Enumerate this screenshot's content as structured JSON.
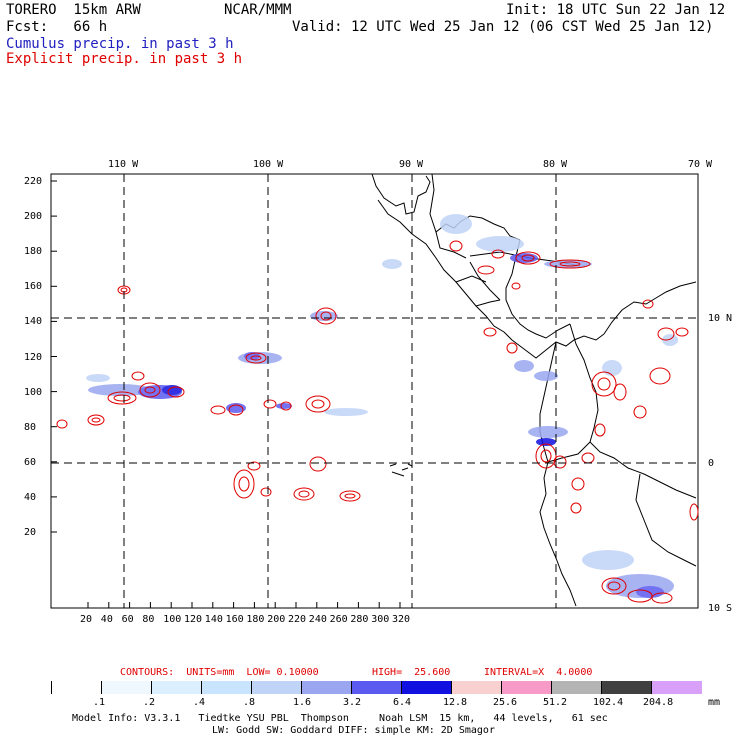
{
  "header": {
    "model": "TORERO  15km ARW",
    "org": "NCAR/MMM",
    "init": "Init: 18 UTC Sun 22 Jan 12",
    "fcst": "Fcst:   66 h",
    "valid": "Valid: 12 UTC Wed 25 Jan 12 (06 CST Wed 25 Jan 12)",
    "cumulus_label": "Cumulus precip. in past 3 h",
    "explicit_label": "Explicit precip. in past 3 h",
    "cumulus_color": "#2020c0",
    "explicit_color": "#e00000"
  },
  "map": {
    "lon_labels": [
      "110 W",
      "100 W",
      "90 W",
      "80 W",
      "70 W"
    ],
    "lat_labels": [
      "10 N",
      "0",
      "10 S"
    ],
    "y_ticks": [
      "220",
      "200",
      "180",
      "160",
      "140",
      "120",
      "100",
      "80",
      "60",
      "40",
      "20"
    ],
    "x_ticks": [
      "20",
      "40",
      "60",
      "80",
      "100",
      "120",
      "140",
      "160",
      "180",
      "200",
      "220",
      "240",
      "260",
      "280",
      "300",
      "320"
    ]
  },
  "contours_line": {
    "prefix": "CONTOURS:  UNITS=mm  LOW= 0.10000",
    "high": "HIGH=  25.600",
    "interval": "INTERVAL=X  4.0000"
  },
  "colorbar": {
    "labels": [
      ".1",
      ".2",
      ".4",
      ".8",
      "1.6",
      "3.2",
      "6.4",
      "12.8",
      "25.6",
      "51.2",
      "102.4",
      "204.8"
    ],
    "unit": "mm",
    "colors": [
      "#ffffff",
      "#f0f8ff",
      "#dcefff",
      "#c8e4ff",
      "#c0d4f8",
      "#9aa6f0",
      "#5a5af0",
      "#1010e0",
      "#f8d0d0",
      "#f89ac8",
      "#b4b4b4",
      "#404040",
      "#d8a0f8"
    ]
  },
  "footer": {
    "line1": "Model Info: V3.3.1   Tiedtke YSU PBL  Thompson     Noah LSM  15 km,   44 levels,   61 sec",
    "line2": "LW: Godd SW: Goddard DIFF: simple KM: 2D Smagor"
  }
}
